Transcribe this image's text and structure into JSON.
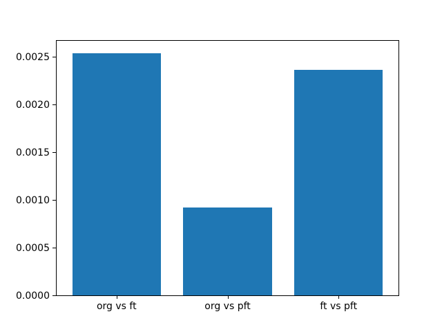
{
  "chart_data": {
    "type": "bar",
    "categories": [
      "org vs ft",
      "org vs pft",
      "ft vs pft"
    ],
    "values": [
      0.00254,
      0.00092,
      0.00236
    ],
    "title": "",
    "xlabel": "",
    "ylabel": "",
    "ylim": [
      0,
      0.002667
    ],
    "xlim": [
      -0.54,
      2.54
    ],
    "yticks": [
      0.0,
      0.0005,
      0.001,
      0.0015,
      0.002,
      0.0025
    ],
    "ytick_labels": [
      "0.0000",
      "0.0005",
      "0.0010",
      "0.0015",
      "0.0020",
      "0.0025"
    ],
    "bar_width_fraction": 0.8,
    "bar_color": "#1f77b4",
    "axes_color": "#000000",
    "background_color": "#ffffff",
    "grid": false,
    "legend": null
  }
}
